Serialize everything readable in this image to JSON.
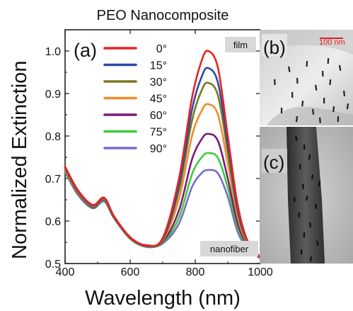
{
  "chart_data": {
    "type": "line",
    "title": "PEO Nanocomposite",
    "xlabel": "Wavelength (nm)",
    "ylabel": "Normalized Extinction",
    "xlim": [
      400,
      1000
    ],
    "ylim": [
      0.5,
      1.05
    ],
    "xticks": [
      "400",
      "600",
      "800",
      "1000"
    ],
    "yticks": [
      "0.5",
      "0.6",
      "0.7",
      "0.8",
      "0.9",
      "1.0"
    ],
    "grid": false,
    "legend_position": "top-left",
    "panel_label": "(a)",
    "annotations": [
      "film",
      "nanofiber"
    ],
    "peak_wavelength": 840,
    "series": [
      {
        "name": "0°",
        "color": "#e8241f",
        "peak": 1.0,
        "points": [
          [
            400,
            0.728
          ],
          [
            440,
            0.672
          ],
          [
            485,
            0.638
          ],
          [
            520,
            0.655
          ],
          [
            550,
            0.612
          ],
          [
            600,
            0.562
          ],
          [
            650,
            0.543
          ],
          [
            700,
            0.56
          ],
          [
            750,
            0.7
          ],
          [
            790,
            0.89
          ],
          [
            820,
            0.978
          ],
          [
            840,
            1.0
          ],
          [
            870,
            0.96
          ],
          [
            900,
            0.8
          ],
          [
            930,
            0.64
          ],
          [
            960,
            0.555
          ],
          [
            1000,
            0.515
          ]
        ]
      },
      {
        "name": "15°",
        "color": "#2b4aa8",
        "peak": 0.96,
        "points": [
          [
            400,
            0.726
          ],
          [
            440,
            0.67
          ],
          [
            485,
            0.637
          ],
          [
            520,
            0.654
          ],
          [
            550,
            0.611
          ],
          [
            600,
            0.562
          ],
          [
            650,
            0.543
          ],
          [
            700,
            0.558
          ],
          [
            750,
            0.685
          ],
          [
            790,
            0.862
          ],
          [
            820,
            0.94
          ],
          [
            840,
            0.96
          ],
          [
            870,
            0.925
          ],
          [
            900,
            0.78
          ],
          [
            930,
            0.63
          ],
          [
            960,
            0.553
          ],
          [
            1000,
            0.515
          ]
        ]
      },
      {
        "name": "30°",
        "color": "#7a7a1a",
        "peak": 0.925,
        "points": [
          [
            400,
            0.725
          ],
          [
            440,
            0.669
          ],
          [
            485,
            0.636
          ],
          [
            520,
            0.653
          ],
          [
            550,
            0.61
          ],
          [
            600,
            0.561
          ],
          [
            650,
            0.542
          ],
          [
            700,
            0.556
          ],
          [
            750,
            0.672
          ],
          [
            790,
            0.836
          ],
          [
            820,
            0.908
          ],
          [
            840,
            0.925
          ],
          [
            870,
            0.895
          ],
          [
            900,
            0.762
          ],
          [
            930,
            0.622
          ],
          [
            960,
            0.551
          ],
          [
            1000,
            0.514
          ]
        ]
      },
      {
        "name": "45°",
        "color": "#f28a2e",
        "peak": 0.875,
        "points": [
          [
            400,
            0.722
          ],
          [
            440,
            0.667
          ],
          [
            485,
            0.635
          ],
          [
            520,
            0.652
          ],
          [
            550,
            0.61
          ],
          [
            600,
            0.561
          ],
          [
            650,
            0.542
          ],
          [
            700,
            0.554
          ],
          [
            750,
            0.652
          ],
          [
            790,
            0.8
          ],
          [
            820,
            0.86
          ],
          [
            840,
            0.875
          ],
          [
            870,
            0.85
          ],
          [
            900,
            0.735
          ],
          [
            930,
            0.61
          ],
          [
            960,
            0.548
          ],
          [
            1000,
            0.514
          ]
        ]
      },
      {
        "name": "60°",
        "color": "#7a1b7a",
        "peak": 0.805,
        "points": [
          [
            400,
            0.72
          ],
          [
            440,
            0.665
          ],
          [
            485,
            0.633
          ],
          [
            520,
            0.65
          ],
          [
            550,
            0.609
          ],
          [
            600,
            0.56
          ],
          [
            650,
            0.541
          ],
          [
            700,
            0.551
          ],
          [
            750,
            0.625
          ],
          [
            790,
            0.745
          ],
          [
            820,
            0.793
          ],
          [
            840,
            0.805
          ],
          [
            870,
            0.788
          ],
          [
            900,
            0.7
          ],
          [
            930,
            0.595
          ],
          [
            960,
            0.544
          ],
          [
            1000,
            0.513
          ]
        ]
      },
      {
        "name": "75°",
        "color": "#3dcc3d",
        "peak": 0.76,
        "points": [
          [
            400,
            0.717
          ],
          [
            440,
            0.663
          ],
          [
            485,
            0.632
          ],
          [
            520,
            0.648
          ],
          [
            550,
            0.608
          ],
          [
            600,
            0.559
          ],
          [
            650,
            0.54
          ],
          [
            700,
            0.549
          ],
          [
            750,
            0.608
          ],
          [
            790,
            0.71
          ],
          [
            820,
            0.75
          ],
          [
            840,
            0.76
          ],
          [
            870,
            0.748
          ],
          [
            900,
            0.678
          ],
          [
            930,
            0.585
          ],
          [
            960,
            0.541
          ],
          [
            1000,
            0.513
          ]
        ]
      },
      {
        "name": "90°",
        "color": "#7a6cc8",
        "peak": 0.72,
        "points": [
          [
            400,
            0.715
          ],
          [
            440,
            0.661
          ],
          [
            485,
            0.63
          ],
          [
            520,
            0.646
          ],
          [
            550,
            0.607
          ],
          [
            600,
            0.558
          ],
          [
            650,
            0.539
          ],
          [
            700,
            0.547
          ],
          [
            750,
            0.594
          ],
          [
            790,
            0.68
          ],
          [
            820,
            0.713
          ],
          [
            840,
            0.72
          ],
          [
            870,
            0.712
          ],
          [
            900,
            0.657
          ],
          [
            930,
            0.575
          ],
          [
            960,
            0.538
          ],
          [
            1000,
            0.512
          ]
        ]
      }
    ]
  },
  "tem_panels": {
    "top_label": "(b)",
    "scale_bar_text": "100 nm",
    "bottom_label": "(c)"
  }
}
